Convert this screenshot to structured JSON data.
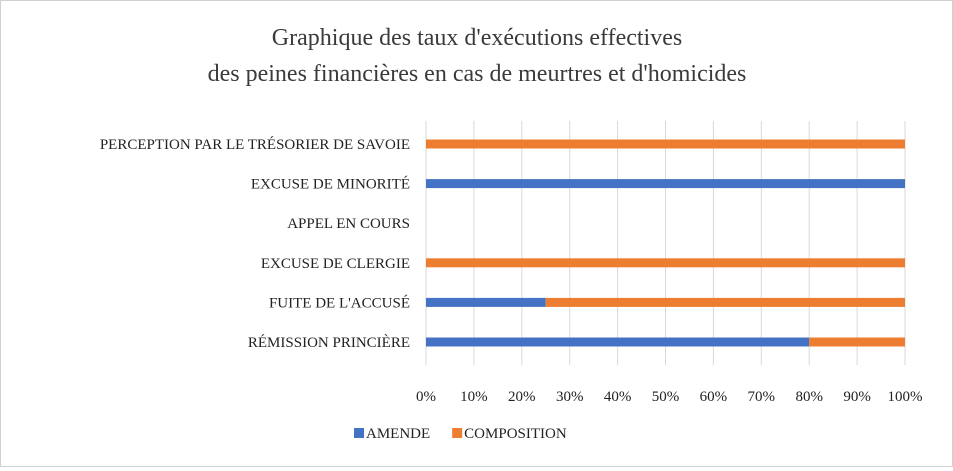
{
  "chart_data": {
    "type": "bar",
    "orientation": "horizontal",
    "stacked": "percent",
    "title_lines": [
      "Graphique des taux d'exécutions effectives",
      "des peines financières en cas de meurtres et d'homicides"
    ],
    "categories": [
      "PERCEPTION PAR LE TRÉSORIER DE SAVOIE",
      "EXCUSE DE MINORITÉ",
      "APPEL EN COURS",
      "EXCUSE DE CLERGIE",
      "FUITE DE L'ACCUSÉ",
      "RÉMISSION PRINCIÈRE"
    ],
    "series": [
      {
        "name": "AMENDE",
        "color": "#4472C4",
        "values": [
          0,
          100,
          0,
          0,
          25,
          80
        ]
      },
      {
        "name": "COMPOSITION",
        "color": "#ED7D31",
        "values": [
          100,
          0,
          0,
          100,
          75,
          20
        ]
      }
    ],
    "xlim": [
      0,
      100
    ],
    "x_ticks": [
      "0%",
      "10%",
      "20%",
      "30%",
      "40%",
      "50%",
      "60%",
      "70%",
      "80%",
      "90%",
      "100%"
    ],
    "grid": "vertical",
    "legend_position": "bottom"
  }
}
